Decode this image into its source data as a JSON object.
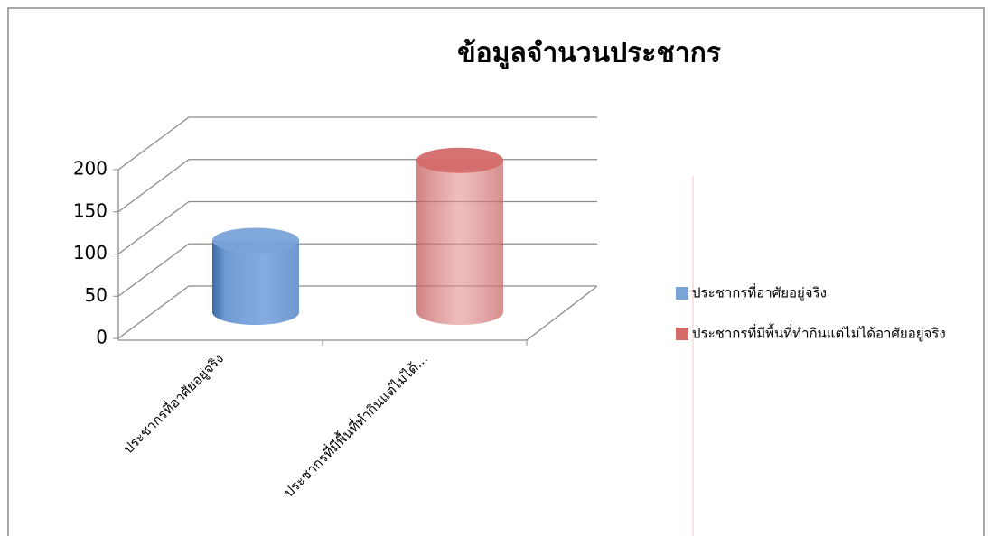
{
  "chart_data": {
    "type": "cylinder",
    "title": "ข้อมูลจำนวนประชากร",
    "categories": [
      "ประชากรที่อาศัยอยู่จริง",
      "ประชากรที่มีพื้นที่ทำกินแต่ไม่ได้..."
    ],
    "series": [
      {
        "name": "ประชากรที่อาศัยอยู่จริง",
        "color": "#7aa3d8",
        "values": [
          85,
          null
        ]
      },
      {
        "name": "ประชากรที่มีพื้นที่ทำกินแต่ไม่ได้อาศัยอยู่จริง",
        "color": "#d46a6a",
        "values": [
          null,
          180
        ]
      }
    ],
    "ylim": [
      0,
      200
    ],
    "yticks": [
      0,
      50,
      100,
      150,
      200
    ],
    "grid": true,
    "legend": "right"
  }
}
